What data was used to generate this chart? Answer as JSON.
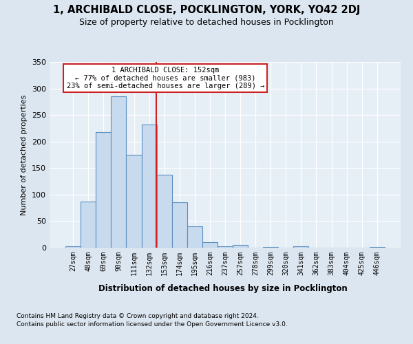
{
  "title1": "1, ARCHIBALD CLOSE, POCKLINGTON, YORK, YO42 2DJ",
  "title2": "Size of property relative to detached houses in Pocklington",
  "xlabel": "Distribution of detached houses by size in Pocklington",
  "ylabel": "Number of detached properties",
  "categories": [
    "27sqm",
    "48sqm",
    "69sqm",
    "90sqm",
    "111sqm",
    "132sqm",
    "153sqm",
    "174sqm",
    "195sqm",
    "216sqm",
    "237sqm",
    "257sqm",
    "278sqm",
    "299sqm",
    "320sqm",
    "341sqm",
    "362sqm",
    "383sqm",
    "404sqm",
    "425sqm",
    "446sqm"
  ],
  "values": [
    2,
    87,
    218,
    285,
    175,
    232,
    137,
    86,
    40,
    10,
    2,
    5,
    0,
    1,
    0,
    3,
    0,
    0,
    0,
    0,
    1
  ],
  "bar_color": "#c8daed",
  "bar_edge_color": "#5a8fc0",
  "annotation_text_line1": "1 ARCHIBALD CLOSE: 152sqm",
  "annotation_text_line2": "← 77% of detached houses are smaller (983)",
  "annotation_text_line3": "23% of semi-detached houses are larger (289) →",
  "annotation_box_facecolor": "#ffffff",
  "annotation_box_edgecolor": "#cc2222",
  "vline_color": "#cc2222",
  "footnote1": "Contains HM Land Registry data © Crown copyright and database right 2024.",
  "footnote2": "Contains public sector information licensed under the Open Government Licence v3.0.",
  "ylim": [
    0,
    350
  ],
  "yticks": [
    0,
    50,
    100,
    150,
    200,
    250,
    300,
    350
  ],
  "title1_fontsize": 10.5,
  "title2_fontsize": 9,
  "fig_bg_color": "#dce6f0",
  "plot_bg_color": "#e6eef6"
}
